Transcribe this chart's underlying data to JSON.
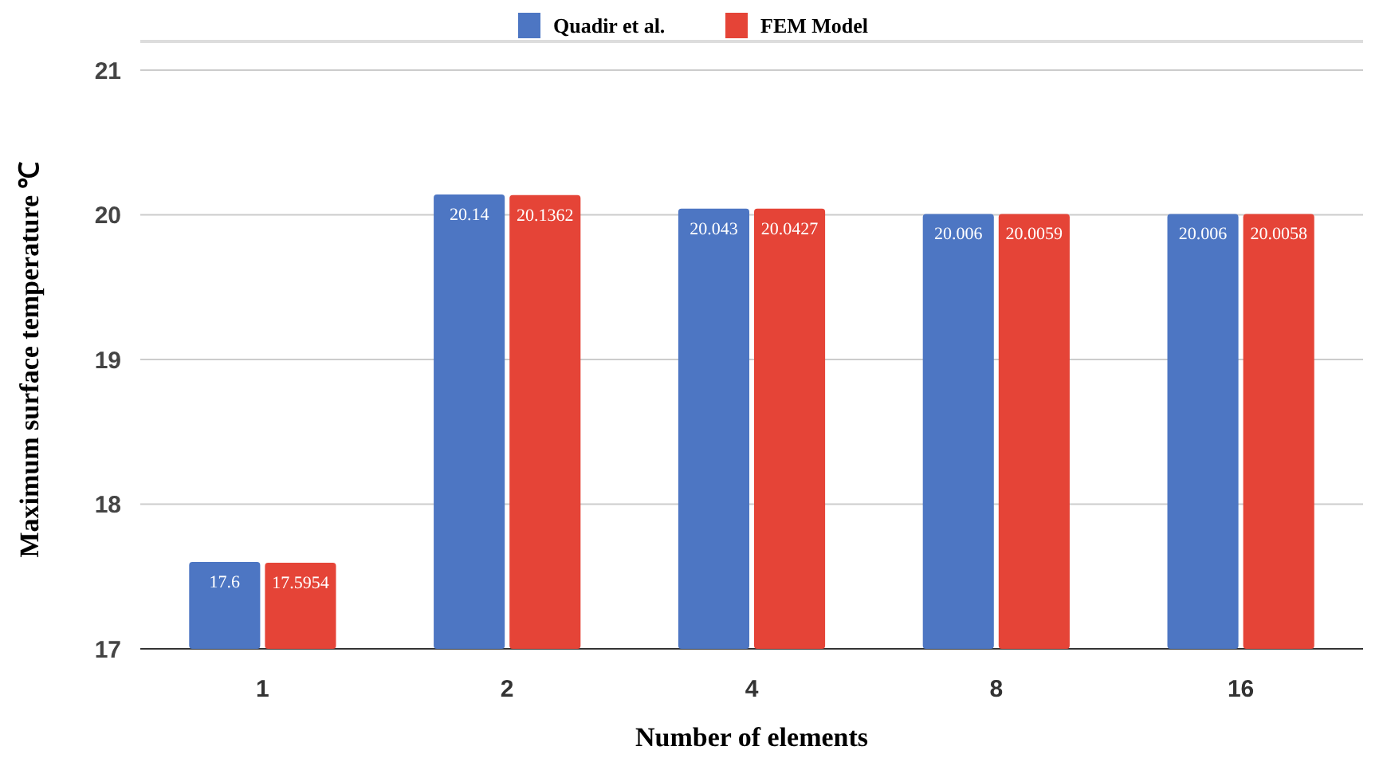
{
  "chart_data": {
    "type": "bar",
    "xlabel": "Number of elements",
    "ylabel": "Maximum surface temperature ℃",
    "categories": [
      "1",
      "2",
      "4",
      "8",
      "16"
    ],
    "series": [
      {
        "name": "Quadir et al.",
        "color": "#4d76c3",
        "values": [
          17.6,
          20.14,
          20.043,
          20.006,
          20.006
        ]
      },
      {
        "name": "FEM Model",
        "color": "#e54437",
        "values": [
          17.5954,
          20.1362,
          20.0427,
          20.0059,
          20.0058
        ]
      }
    ],
    "ylim": [
      17,
      21
    ],
    "yticks": [
      17,
      18,
      19,
      20,
      21
    ],
    "grid": "y",
    "legend": "top",
    "data_labels": true
  }
}
